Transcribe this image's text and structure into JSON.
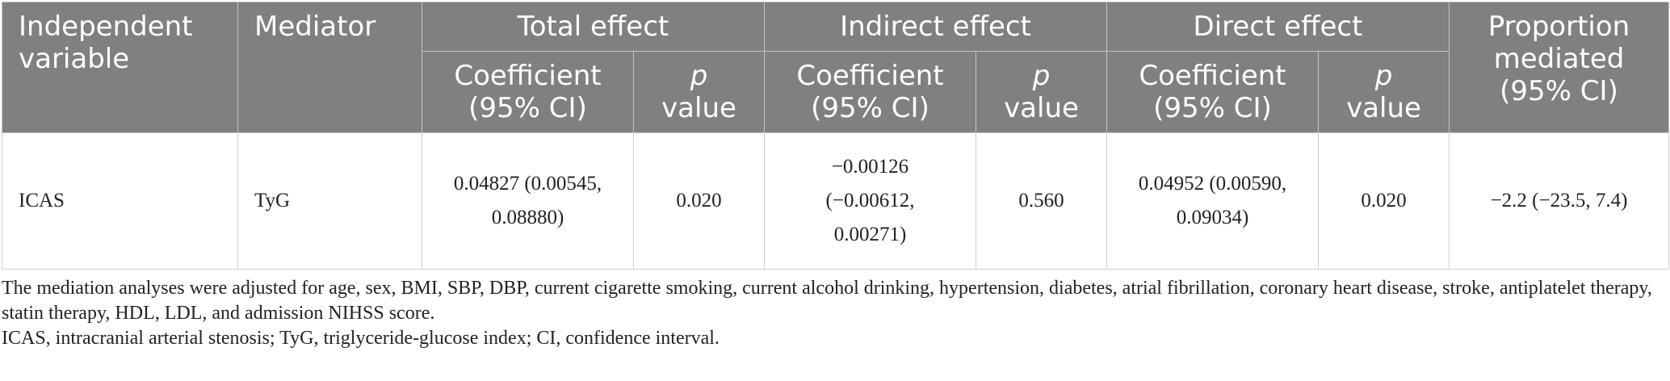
{
  "table": {
    "headers": {
      "independent_variable": "Independent variable",
      "mediator": "Mediator",
      "total_effect": "Total effect",
      "indirect_effect": "Indirect effect",
      "direct_effect": "Direct effect",
      "proportion_mediated": "Proportion mediated (95% CI)",
      "coefficient": "Coefficient (95% CI)",
      "p_letter": "p",
      "value": "value"
    },
    "rows": [
      {
        "independent_variable": "ICAS",
        "mediator": "TyG",
        "total_coef": "0.04827 (0.00545, 0.08880)",
        "total_p": "0.020",
        "indirect_coef": "−0.00126 (−0.00612, 0.00271)",
        "indirect_p": "0.560",
        "direct_coef": "0.04952 (0.00590, 0.09034)",
        "direct_p": "0.020",
        "proportion": "−2.2 (−23.5, 7.4)"
      }
    ]
  },
  "notes": {
    "adjustment": "The mediation analyses were adjusted for age, sex, BMI, SBP, DBP, current cigarette smoking, current alcohol drinking, hypertension, diabetes, atrial fibrillation, coronary heart disease, stroke, antiplatelet therapy, statin therapy, HDL, LDL, and admission NIHSS score.",
    "abbreviations": "ICAS, intracranial arterial stenosis; TyG, triglyceride-glucose index; CI, confidence interval."
  }
}
